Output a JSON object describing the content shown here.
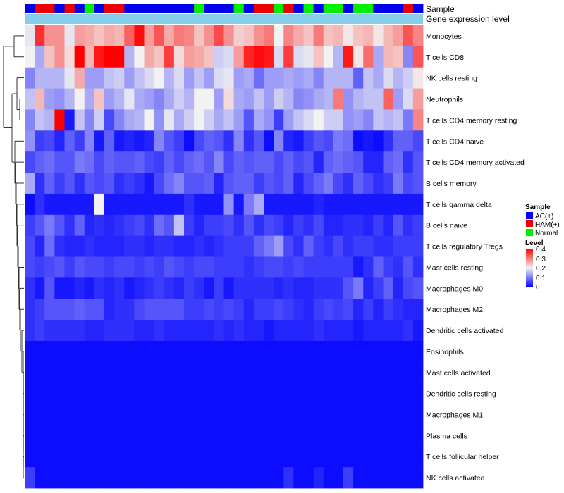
{
  "chart_data": {
    "type": "heatmap",
    "title": "",
    "annotation_tracks": [
      "Sample",
      "Gene expression level"
    ],
    "sample_levels": [
      "AC(+)",
      "HAM(+)",
      "Normal"
    ],
    "sample_colors": {
      "AC(+)": "#0000EE",
      "HAM(+)": "#EE0000",
      "Normal": "#00EE00"
    },
    "expression_bar_color": "#87CEEB",
    "sample_groups": [
      "AC(+)",
      "HAM(+)",
      "HAM(+)",
      "AC(+)",
      "HAM(+)",
      "AC(+)",
      "Normal",
      "AC(+)",
      "HAM(+)",
      "HAM(+)",
      "AC(+)",
      "AC(+)",
      "AC(+)",
      "AC(+)",
      "AC(+)",
      "AC(+)",
      "AC(+)",
      "Normal",
      "AC(+)",
      "AC(+)",
      "AC(+)",
      "Normal",
      "AC(+)",
      "HAM(+)",
      "HAM(+)",
      "Normal",
      "HAM(+)",
      "AC(+)",
      "Normal",
      "AC(+)",
      "Normal",
      "Normal",
      "AC(+)",
      "Normal",
      "Normal",
      "AC(+)",
      "AC(+)",
      "AC(+)",
      "HAM(+)",
      "AC(+)"
    ],
    "rows": [
      "Monocytes",
      "T cells CD8",
      "NK cells resting",
      "Neutrophils",
      "T cells CD4 memory resting",
      "T cells CD4 naive",
      "T cells CD4 memory activated",
      "B cells memory",
      "T cells gamma delta",
      "B cells naive",
      "T cells regulatory  Tregs",
      "Mast cells resting",
      "Macrophages M0",
      "Macrophages M2",
      "Dendritic cells activated",
      "Eosinophils",
      "Mast cells activated",
      "Dendritic cells resting",
      "Macrophages M1",
      "Plasma cells",
      "T cells follicular helper",
      "NK cells activated"
    ],
    "values": [
      [
        0.19,
        0.36,
        0.28,
        0.28,
        0.19,
        0.27,
        0.26,
        0.24,
        0.26,
        0.25,
        0.32,
        0.39,
        0.27,
        0.33,
        0.26,
        0.3,
        0.29,
        0.24,
        0.28,
        0.34,
        0.28,
        0.23,
        0.24,
        0.28,
        0.3,
        0.2,
        0.29,
        0.26,
        0.24,
        0.3,
        0.24,
        0.25,
        0.21,
        0.24,
        0.25,
        0.21,
        0.25,
        0.27,
        0.33,
        0.29
      ],
      [
        0.2,
        0.14,
        0.24,
        0.28,
        0.22,
        0.4,
        0.25,
        0.38,
        0.4,
        0.4,
        0.15,
        0.2,
        0.26,
        0.24,
        0.35,
        0.22,
        0.27,
        0.26,
        0.24,
        0.17,
        0.18,
        0.27,
        0.37,
        0.39,
        0.38,
        0.18,
        0.35,
        0.18,
        0.19,
        0.24,
        0.2,
        0.15,
        0.38,
        0.21,
        0.31,
        0.14,
        0.25,
        0.24,
        0.11,
        0.33
      ],
      [
        0.11,
        0.15,
        0.15,
        0.15,
        0.19,
        0.26,
        0.13,
        0.13,
        0.16,
        0.17,
        0.13,
        0.16,
        0.18,
        0.2,
        0.15,
        0.18,
        0.13,
        0.16,
        0.13,
        0.18,
        0.19,
        0.13,
        0.14,
        0.09,
        0.13,
        0.13,
        0.14,
        0.13,
        0.14,
        0.11,
        0.15,
        0.15,
        0.15,
        0.08,
        0.16,
        0.14,
        0.18,
        0.15,
        0.17,
        0.21
      ],
      [
        0.16,
        0.25,
        0.13,
        0.12,
        0.15,
        0.2,
        0.14,
        0.24,
        0.13,
        0.15,
        0.19,
        0.14,
        0.13,
        0.11,
        0.14,
        0.17,
        0.15,
        0.2,
        0.2,
        0.13,
        0.22,
        0.14,
        0.13,
        0.16,
        0.13,
        0.17,
        0.15,
        0.11,
        0.12,
        0.14,
        0.15,
        0.3,
        0.12,
        0.15,
        0.16,
        0.16,
        0.32,
        0.13,
        0.18,
        0.27
      ],
      [
        0.11,
        0.16,
        0.15,
        0.4,
        0.02,
        0.16,
        0.11,
        0.17,
        0.06,
        0.11,
        0.14,
        0.15,
        0.2,
        0.12,
        0.19,
        0.14,
        0.17,
        0.2,
        0.17,
        0.14,
        0.16,
        0.13,
        0.07,
        0.14,
        0.12,
        0.05,
        0.13,
        0.16,
        0.18,
        0.2,
        0.17,
        0.17,
        0.12,
        0.13,
        0.11,
        0.16,
        0.15,
        0.16,
        0.1,
        0.29
      ],
      [
        0.12,
        0.05,
        0.06,
        0.03,
        0.08,
        0.05,
        0.11,
        0.02,
        0.08,
        0.02,
        0.03,
        0.02,
        0.03,
        0.11,
        0.07,
        0.05,
        0.01,
        0.06,
        0.08,
        0.07,
        0.04,
        0.11,
        0.04,
        0.07,
        0.01,
        0.11,
        0.03,
        0.02,
        0.05,
        0.07,
        0.06,
        0.1,
        0.09,
        0.01,
        0.02,
        0.01,
        0.04,
        0.08,
        0.08,
        0.06
      ],
      [
        0.06,
        0.08,
        0.09,
        0.07,
        0.07,
        0.1,
        0.09,
        0.06,
        0.08,
        0.07,
        0.07,
        0.08,
        0.06,
        0.05,
        0.08,
        0.06,
        0.08,
        0.09,
        0.07,
        0.11,
        0.06,
        0.08,
        0.07,
        0.08,
        0.08,
        0.06,
        0.08,
        0.06,
        0.07,
        0.03,
        0.08,
        0.09,
        0.08,
        0.07,
        0.03,
        0.03,
        0.08,
        0.09,
        0.04,
        0.07
      ],
      [
        0.14,
        0.04,
        0.08,
        0.05,
        0.07,
        0.04,
        0.07,
        0.06,
        0.07,
        0.04,
        0.05,
        0.04,
        0.02,
        0.06,
        0.09,
        0.11,
        0.07,
        0.07,
        0.08,
        0.03,
        0.07,
        0.08,
        0.08,
        0.05,
        0.07,
        0.06,
        0.08,
        0.03,
        0.06,
        0.08,
        0.1,
        0.06,
        0.04,
        0.08,
        0.06,
        0.04,
        0.05,
        0.1,
        0.06,
        0.07
      ],
      [
        0.01,
        0.04,
        0.02,
        0.02,
        0.02,
        0.02,
        0.02,
        0.2,
        0.02,
        0.02,
        0.02,
        0.02,
        0.02,
        0.02,
        0.02,
        0.02,
        0.04,
        0.02,
        0.02,
        0.02,
        0.12,
        0.02,
        0.1,
        0.14,
        0.02,
        0.02,
        0.02,
        0.02,
        0.02,
        0.03,
        0.02,
        0.02,
        0.02,
        0.02,
        0.02,
        0.02,
        0.02,
        0.02,
        0.02,
        0.02
      ],
      [
        0.05,
        0.07,
        0.1,
        0.07,
        0.04,
        0.08,
        0.03,
        0.04,
        0.03,
        0.04,
        0.05,
        0.06,
        0.04,
        0.09,
        0.07,
        0.16,
        0.05,
        0.03,
        0.05,
        0.05,
        0.06,
        0.04,
        0.07,
        0.04,
        0.06,
        0.05,
        0.03,
        0.05,
        0.04,
        0.06,
        0.03,
        0.03,
        0.04,
        0.04,
        0.03,
        0.05,
        0.03,
        0.07,
        0.04,
        0.05
      ],
      [
        0.06,
        0.03,
        0.09,
        0.04,
        0.03,
        0.03,
        0.04,
        0.03,
        0.03,
        0.03,
        0.04,
        0.04,
        0.03,
        0.04,
        0.04,
        0.03,
        0.03,
        0.04,
        0.03,
        0.04,
        0.05,
        0.05,
        0.05,
        0.08,
        0.1,
        0.13,
        0.06,
        0.04,
        0.08,
        0.05,
        0.04,
        0.06,
        0.04,
        0.05,
        0.05,
        0.04,
        0.04,
        0.05,
        0.05,
        0.05
      ],
      [
        0.06,
        0.05,
        0.06,
        0.07,
        0.05,
        0.07,
        0.06,
        0.06,
        0.05,
        0.06,
        0.06,
        0.05,
        0.06,
        0.05,
        0.07,
        0.06,
        0.05,
        0.06,
        0.06,
        0.05,
        0.05,
        0.05,
        0.04,
        0.05,
        0.06,
        0.06,
        0.05,
        0.06,
        0.05,
        0.05,
        0.05,
        0.05,
        0.05,
        0.02,
        0.04,
        0.08,
        0.05,
        0.04,
        0.07,
        0.04
      ],
      [
        0.04,
        0.02,
        0.07,
        0.02,
        0.02,
        0.03,
        0.02,
        0.04,
        0.03,
        0.04,
        0.02,
        0.03,
        0.04,
        0.05,
        0.04,
        0.03,
        0.05,
        0.04,
        0.02,
        0.05,
        0.02,
        0.04,
        0.04,
        0.04,
        0.04,
        0.03,
        0.04,
        0.03,
        0.03,
        0.04,
        0.04,
        0.04,
        0.07,
        0.1,
        0.03,
        0.05,
        0.08,
        0.03,
        0.06,
        0.07
      ],
      [
        0.04,
        0.05,
        0.07,
        0.07,
        0.07,
        0.08,
        0.07,
        0.07,
        0.03,
        0.04,
        0.04,
        0.06,
        0.07,
        0.07,
        0.07,
        0.07,
        0.05,
        0.05,
        0.06,
        0.05,
        0.06,
        0.05,
        0.03,
        0.05,
        0.05,
        0.06,
        0.05,
        0.04,
        0.03,
        0.05,
        0.06,
        0.05,
        0.06,
        0.03,
        0.05,
        0.03,
        0.05,
        0.04,
        0.03,
        0.03
      ],
      [
        0.04,
        0.05,
        0.04,
        0.04,
        0.04,
        0.04,
        0.03,
        0.03,
        0.04,
        0.04,
        0.04,
        0.03,
        0.03,
        0.04,
        0.03,
        0.03,
        0.03,
        0.03,
        0.03,
        0.04,
        0.03,
        0.04,
        0.03,
        0.03,
        0.02,
        0.03,
        0.03,
        0.03,
        0.03,
        0.04,
        0.03,
        0.03,
        0.03,
        0.02,
        0.03,
        0.03,
        0.03,
        0.03,
        0.04,
        0.02
      ],
      [
        0.01,
        0.01,
        0.01,
        0.01,
        0.01,
        0.01,
        0.01,
        0.01,
        0.01,
        0.01,
        0.01,
        0.01,
        0.01,
        0.01,
        0.01,
        0.01,
        0.01,
        0.01,
        0.01,
        0.01,
        0.01,
        0.01,
        0.01,
        0.01,
        0.01,
        0.01,
        0.01,
        0.01,
        0.01,
        0.01,
        0.01,
        0.01,
        0.01,
        0.01,
        0.01,
        0.01,
        0.01,
        0.01,
        0.01,
        0.01
      ],
      [
        0.01,
        0.01,
        0.01,
        0.01,
        0.01,
        0.01,
        0.01,
        0.01,
        0.01,
        0.01,
        0.01,
        0.01,
        0.01,
        0.01,
        0.01,
        0.01,
        0.01,
        0.01,
        0.01,
        0.01,
        0.01,
        0.01,
        0.01,
        0.01,
        0.01,
        0.01,
        0.01,
        0.01,
        0.01,
        0.01,
        0.01,
        0.01,
        0.01,
        0.01,
        0.01,
        0.01,
        0.01,
        0.01,
        0.01,
        0.01
      ],
      [
        0.01,
        0.01,
        0.01,
        0.01,
        0.01,
        0.01,
        0.01,
        0.01,
        0.01,
        0.01,
        0.01,
        0.01,
        0.01,
        0.01,
        0.01,
        0.01,
        0.01,
        0.01,
        0.01,
        0.01,
        0.01,
        0.01,
        0.01,
        0.01,
        0.01,
        0.01,
        0.01,
        0.01,
        0.01,
        0.01,
        0.01,
        0.01,
        0.01,
        0.01,
        0.01,
        0.01,
        0.01,
        0.01,
        0.01,
        0.01
      ],
      [
        0.01,
        0.01,
        0.01,
        0.01,
        0.01,
        0.01,
        0.01,
        0.01,
        0.01,
        0.01,
        0.01,
        0.01,
        0.01,
        0.01,
        0.01,
        0.01,
        0.01,
        0.01,
        0.01,
        0.01,
        0.01,
        0.01,
        0.01,
        0.01,
        0.01,
        0.01,
        0.01,
        0.01,
        0.01,
        0.01,
        0.01,
        0.01,
        0.01,
        0.01,
        0.01,
        0.01,
        0.01,
        0.01,
        0.01,
        0.01
      ],
      [
        0.01,
        0.01,
        0.01,
        0.01,
        0.01,
        0.01,
        0.01,
        0.01,
        0.01,
        0.01,
        0.01,
        0.01,
        0.01,
        0.01,
        0.01,
        0.01,
        0.01,
        0.01,
        0.01,
        0.01,
        0.01,
        0.01,
        0.01,
        0.01,
        0.01,
        0.01,
        0.01,
        0.01,
        0.01,
        0.01,
        0.01,
        0.01,
        0.01,
        0.01,
        0.01,
        0.01,
        0.01,
        0.01,
        0.01,
        0.01
      ],
      [
        0.01,
        0.01,
        0.01,
        0.01,
        0.01,
        0.01,
        0.01,
        0.01,
        0.01,
        0.01,
        0.01,
        0.01,
        0.01,
        0.01,
        0.01,
        0.01,
        0.01,
        0.01,
        0.01,
        0.01,
        0.01,
        0.01,
        0.01,
        0.01,
        0.01,
        0.01,
        0.01,
        0.01,
        0.01,
        0.01,
        0.01,
        0.01,
        0.01,
        0.01,
        0.01,
        0.01,
        0.01,
        0.01,
        0.01,
        0.01
      ],
      [
        0.05,
        0.01,
        0.01,
        0.01,
        0.01,
        0.01,
        0.01,
        0.01,
        0.01,
        0.01,
        0.01,
        0.01,
        0.01,
        0.01,
        0.01,
        0.01,
        0.01,
        0.01,
        0.01,
        0.01,
        0.01,
        0.01,
        0.01,
        0.01,
        0.01,
        0.01,
        0.04,
        0.01,
        0.01,
        0.03,
        0.01,
        0.01,
        0.05,
        0.01,
        0.01,
        0.01,
        0.01,
        0.01,
        0.01,
        0.01
      ]
    ],
    "color_scale": {
      "min": 0,
      "mid": 0.2,
      "max": 0.4,
      "low": "#0000FF",
      "midcolor": "#F2F2F2",
      "high": "#FF0000"
    },
    "legend": {
      "sample_title": "Sample",
      "level_title": "Level",
      "level_ticks": [
        "0.4",
        "0.3",
        "0.2",
        "0.1",
        "0"
      ],
      "position": "right"
    },
    "row_dendrogram": "left",
    "column_dendrogram": "none"
  }
}
